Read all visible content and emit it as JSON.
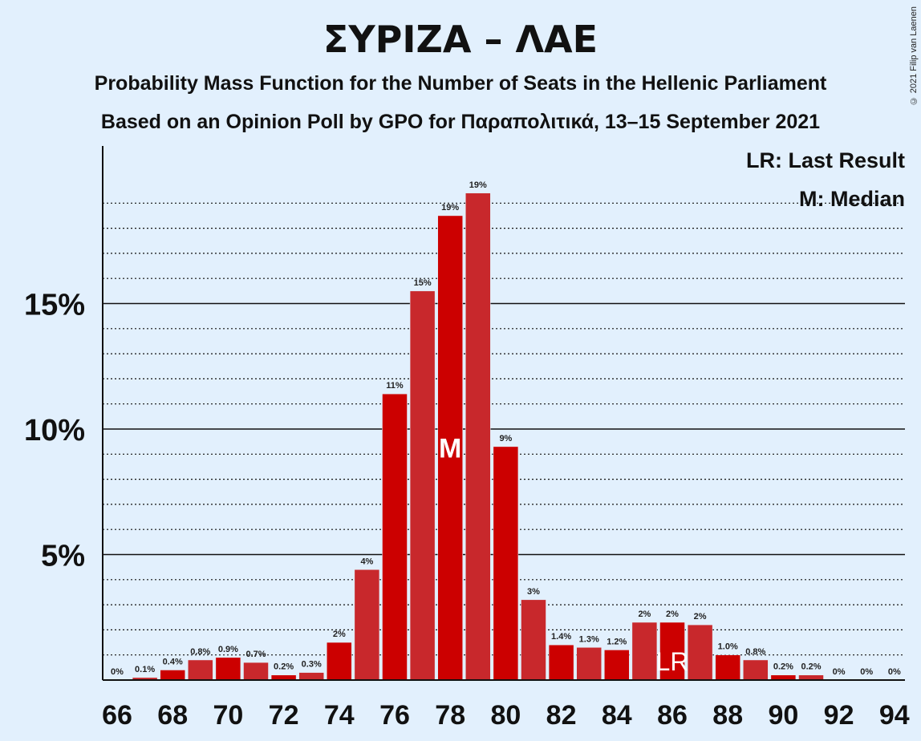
{
  "title": "ΣΥΡΙΖΑ – ΛΑΕ",
  "subtitle": "Probability Mass Function for the Number of Seats in the Hellenic Parliament",
  "subtitle2": "Based on an Opinion Poll by GPO for Παραπολιτικά, 13–15 September 2021",
  "copyright": "© 2021 Filip van Laenen",
  "legend": {
    "last_result": "LR: Last Result",
    "median": "M: Median"
  },
  "colors": {
    "bar_even": "#cc0000",
    "bar_odd": "#c8282c",
    "background": "#e2f0fd"
  },
  "chart_data": {
    "type": "bar",
    "x": [
      66,
      67,
      68,
      69,
      70,
      71,
      72,
      73,
      74,
      75,
      76,
      77,
      78,
      79,
      80,
      81,
      82,
      83,
      84,
      85,
      86,
      87,
      88,
      89,
      90,
      91,
      92,
      93,
      94
    ],
    "values": [
      0,
      0.1,
      0.4,
      0.8,
      0.9,
      0.7,
      0.2,
      0.3,
      1.5,
      4.4,
      11.4,
      15.5,
      18.5,
      19.4,
      9.3,
      3.2,
      1.4,
      1.3,
      1.2,
      2.3,
      2.3,
      2.2,
      1.0,
      0.8,
      0.2,
      0.2,
      0,
      0,
      0
    ],
    "labels": [
      "0%",
      "0.1%",
      "0.4%",
      "0.8%",
      "0.9%",
      "0.7%",
      "0.2%",
      "0.3%",
      "2%",
      "4%",
      "11%",
      "15%",
      "19%",
      "19%",
      "9%",
      "3%",
      "1.4%",
      "1.3%",
      "1.2%",
      "2%",
      "2%",
      "2%",
      "1.0%",
      "0.8%",
      "0.2%",
      "0.2%",
      "0%",
      "0%",
      "0%"
    ],
    "xticks": [
      66,
      68,
      70,
      72,
      74,
      76,
      78,
      80,
      82,
      84,
      86,
      88,
      90,
      92,
      94
    ],
    "yticks": [
      5,
      10,
      15
    ],
    "ytick_labels": [
      "5%",
      "10%",
      "15%"
    ],
    "ylim": [
      0,
      21
    ],
    "median": 78,
    "median_label": "M",
    "last_result": 86,
    "last_result_label": "LR"
  }
}
